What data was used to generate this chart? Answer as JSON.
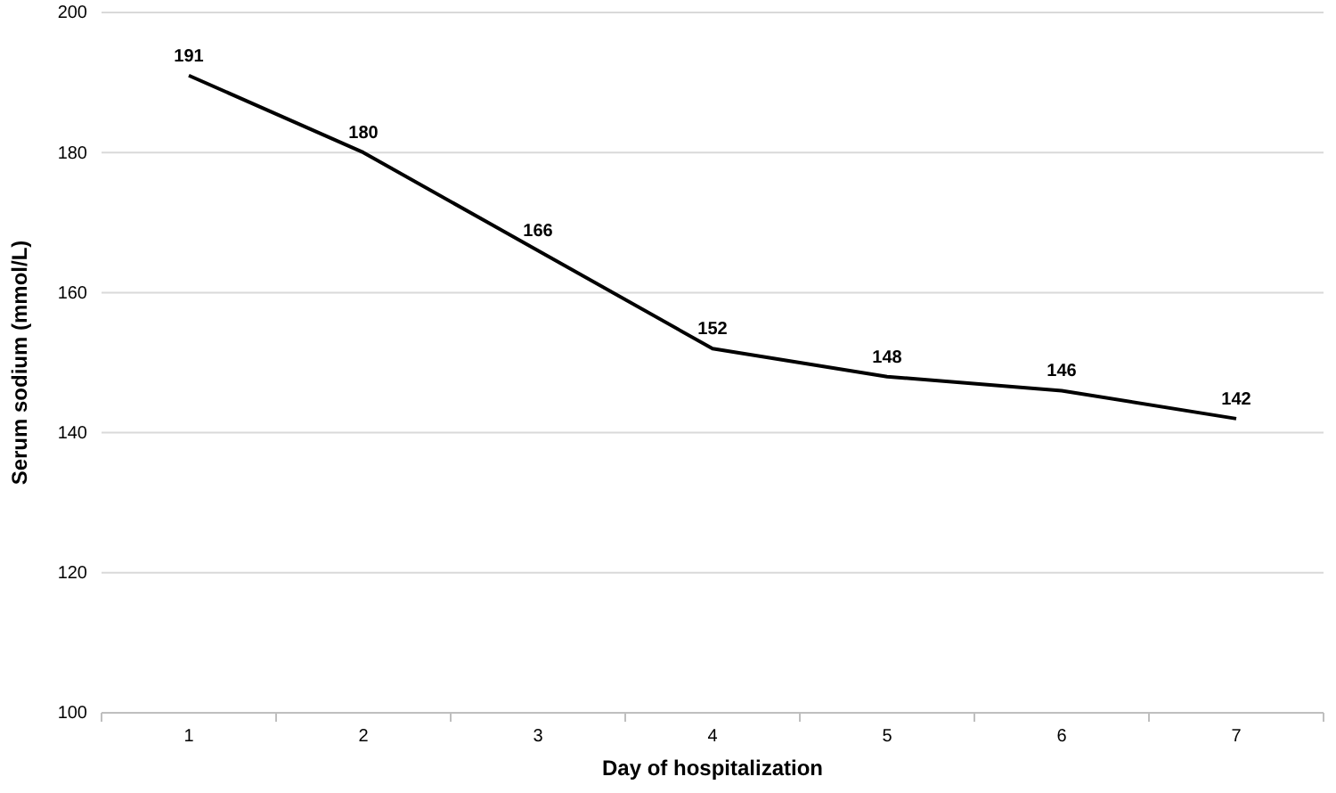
{
  "chart_data": {
    "type": "line",
    "xlabel": "Day of hospitalization",
    "ylabel": "Serum sodium (mmol/L)",
    "categories": [
      "1",
      "2",
      "3",
      "4",
      "5",
      "6",
      "7"
    ],
    "series": [
      {
        "color": "#000000",
        "values": [
          191,
          180,
          166,
          152,
          148,
          146,
          142
        ]
      }
    ],
    "ylim": [
      100,
      200
    ],
    "yticks": [
      100,
      120,
      140,
      160,
      180,
      200
    ],
    "grid": "y",
    "data_labels": true,
    "marker": "none",
    "line_style": "solid"
  }
}
